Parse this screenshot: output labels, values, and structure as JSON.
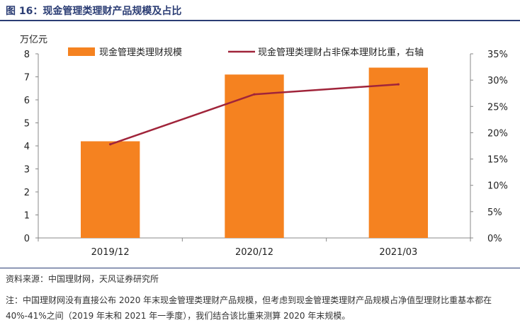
{
  "figure_title": "图 16：现金管理类理财产品规模及占比",
  "source": "资料来源：中国理财网，天风证券研究所",
  "note": "注：中国理财网没有直接公布 2020 年末现金管理类理财产品规模，但考虑到现金管理类理财产品规模占净值型理财比重基本都在 40%-41%之间（2019 年末和 2021 年一季度），我们结合该比重来测算 2020 年末规模。",
  "colors": {
    "bar": "#f58220",
    "line": "#a0243a",
    "title": "#2b3d74"
  },
  "chart_data": {
    "type": "bar",
    "categories": [
      "2019/12",
      "2020/12",
      "2021/03"
    ],
    "series": [
      {
        "name": "现金管理类理财规模",
        "type": "bar",
        "axis": "left",
        "values": [
          4.2,
          7.1,
          7.4
        ]
      },
      {
        "name": "现金管理类理财占非保本理财比重，右轴",
        "type": "line",
        "axis": "right",
        "values": [
          17.8,
          27.3,
          29.2
        ]
      }
    ],
    "y_left": {
      "unit": "万亿元",
      "min": 0,
      "max": 8,
      "ticks": [
        "0",
        "1",
        "2",
        "3",
        "4",
        "5",
        "6",
        "7",
        "8"
      ]
    },
    "y_right": {
      "min": 0,
      "max": 35,
      "ticks": [
        "0%",
        "5%",
        "10%",
        "15%",
        "20%",
        "25%",
        "30%",
        "35%"
      ]
    },
    "legend_position": "top",
    "grid": false
  }
}
